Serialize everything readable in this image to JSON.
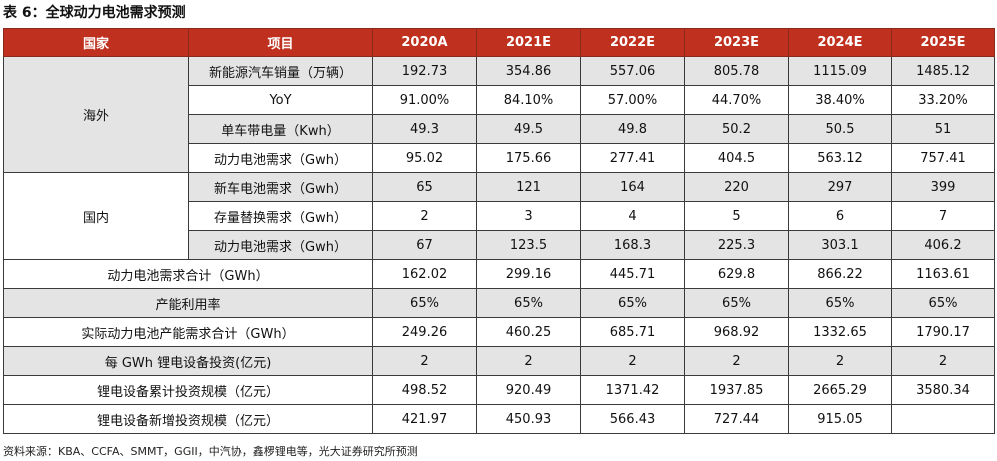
{
  "title": "表 6：全球动力电池需求预测",
  "headers": [
    "国家",
    "项目",
    "2020A",
    "2021E",
    "2022E",
    "2023E",
    "2024E",
    "2025E"
  ],
  "groups": {
    "overseas": "海外",
    "domestic": "国内"
  },
  "rows": [
    {
      "label": "新能源汽车销量（万辆）",
      "values": [
        "192.73",
        "354.86",
        "557.06",
        "805.78",
        "1115.09",
        "1485.12"
      ]
    },
    {
      "label": "YoY",
      "values": [
        "91.00%",
        "84.10%",
        "57.00%",
        "44.70%",
        "38.40%",
        "33.20%"
      ]
    },
    {
      "label": "单车带电量（Kwh）",
      "values": [
        "49.3",
        "49.5",
        "49.8",
        "50.2",
        "50.5",
        "51"
      ]
    },
    {
      "label": "动力电池需求（Gwh）",
      "values": [
        "95.02",
        "175.66",
        "277.41",
        "404.5",
        "563.12",
        "757.41"
      ]
    },
    {
      "label": "新车电池需求（Gwh）",
      "values": [
        "65",
        "121",
        "164",
        "220",
        "297",
        "399"
      ]
    },
    {
      "label": "存量替换需求（Gwh）",
      "values": [
        "2",
        "3",
        "4",
        "5",
        "6",
        "7"
      ]
    },
    {
      "label": "动力电池需求（Gwh）",
      "values": [
        "67",
        "123.5",
        "168.3",
        "225.3",
        "303.1",
        "406.2"
      ]
    },
    {
      "label": "动力电池需求合计（GWh）",
      "values": [
        "162.02",
        "299.16",
        "445.71",
        "629.8",
        "866.22",
        "1163.61"
      ]
    },
    {
      "label": "产能利用率",
      "values": [
        "65%",
        "65%",
        "65%",
        "65%",
        "65%",
        "65%"
      ]
    },
    {
      "label": "实际动力电池产能需求合计（GWh）",
      "values": [
        "249.26",
        "460.25",
        "685.71",
        "968.92",
        "1332.65",
        "1790.17"
      ]
    },
    {
      "label": "每 GWh 锂电设备投资(亿元)",
      "values": [
        "2",
        "2",
        "2",
        "2",
        "2",
        "2"
      ]
    },
    {
      "label": "锂电设备累计投资规模（亿元）",
      "values": [
        "498.52",
        "920.49",
        "1371.42",
        "1937.85",
        "2665.29",
        "3580.34"
      ]
    },
    {
      "label": "锂电设备新增投资规模（亿元）",
      "values": [
        "421.97",
        "450.93",
        "566.43",
        "727.44",
        "915.05",
        ""
      ]
    }
  ],
  "source": "资料来源：KBA、CCFA、SMMT，GGII，中汽协，鑫椤锂电等，光大证券研究所预测",
  "colors": {
    "header_bg": "#c0301e",
    "shade": "#e4e4e4"
  }
}
